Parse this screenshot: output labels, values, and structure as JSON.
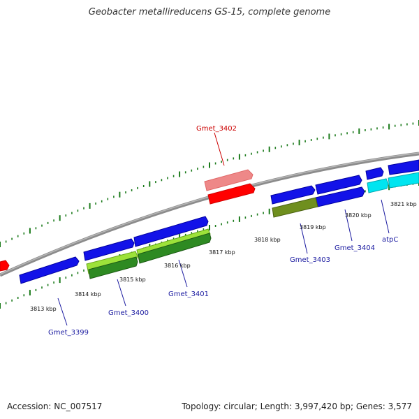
{
  "title": "Geobacter metallireducens GS-15, complete genome",
  "footer": {
    "accession": "Accession: NC_007517",
    "summary": "Topology: circular; Length: 3,997,420 bp; Genes: 3,577"
  },
  "colors": {
    "backbone": "#8c8c8c",
    "tick": "#1a7a1a",
    "gene_blue": "#1212e8",
    "gene_red": "#ff0000",
    "gene_pink": "#ee8888",
    "gene_cyan": "#00e5f0",
    "cds_lightgreen": "#9de23a",
    "cds_darkgreen": "#2e8a22",
    "cds_olive": "#6f8f1e",
    "label_blue": "#1a1aa0",
    "label_red": "#cc0000"
  },
  "scale_labels": [
    "3813 kbp",
    "3814 kbp",
    "3815 kbp",
    "3816 kbp",
    "3817 kbp",
    "3818 kbp",
    "3819 kbp",
    "3820 kbp",
    "3821 kbp"
  ],
  "gene_labels": {
    "gmet_3399": "Gmet_3399",
    "gmet_3400": "Gmet_3400",
    "gmet_3401": "Gmet_3401",
    "gmet_3402": "Gmet_3402",
    "gmet_3403": "Gmet_3403",
    "gmet_3404": "Gmet_3404",
    "atpc": "atpC"
  }
}
